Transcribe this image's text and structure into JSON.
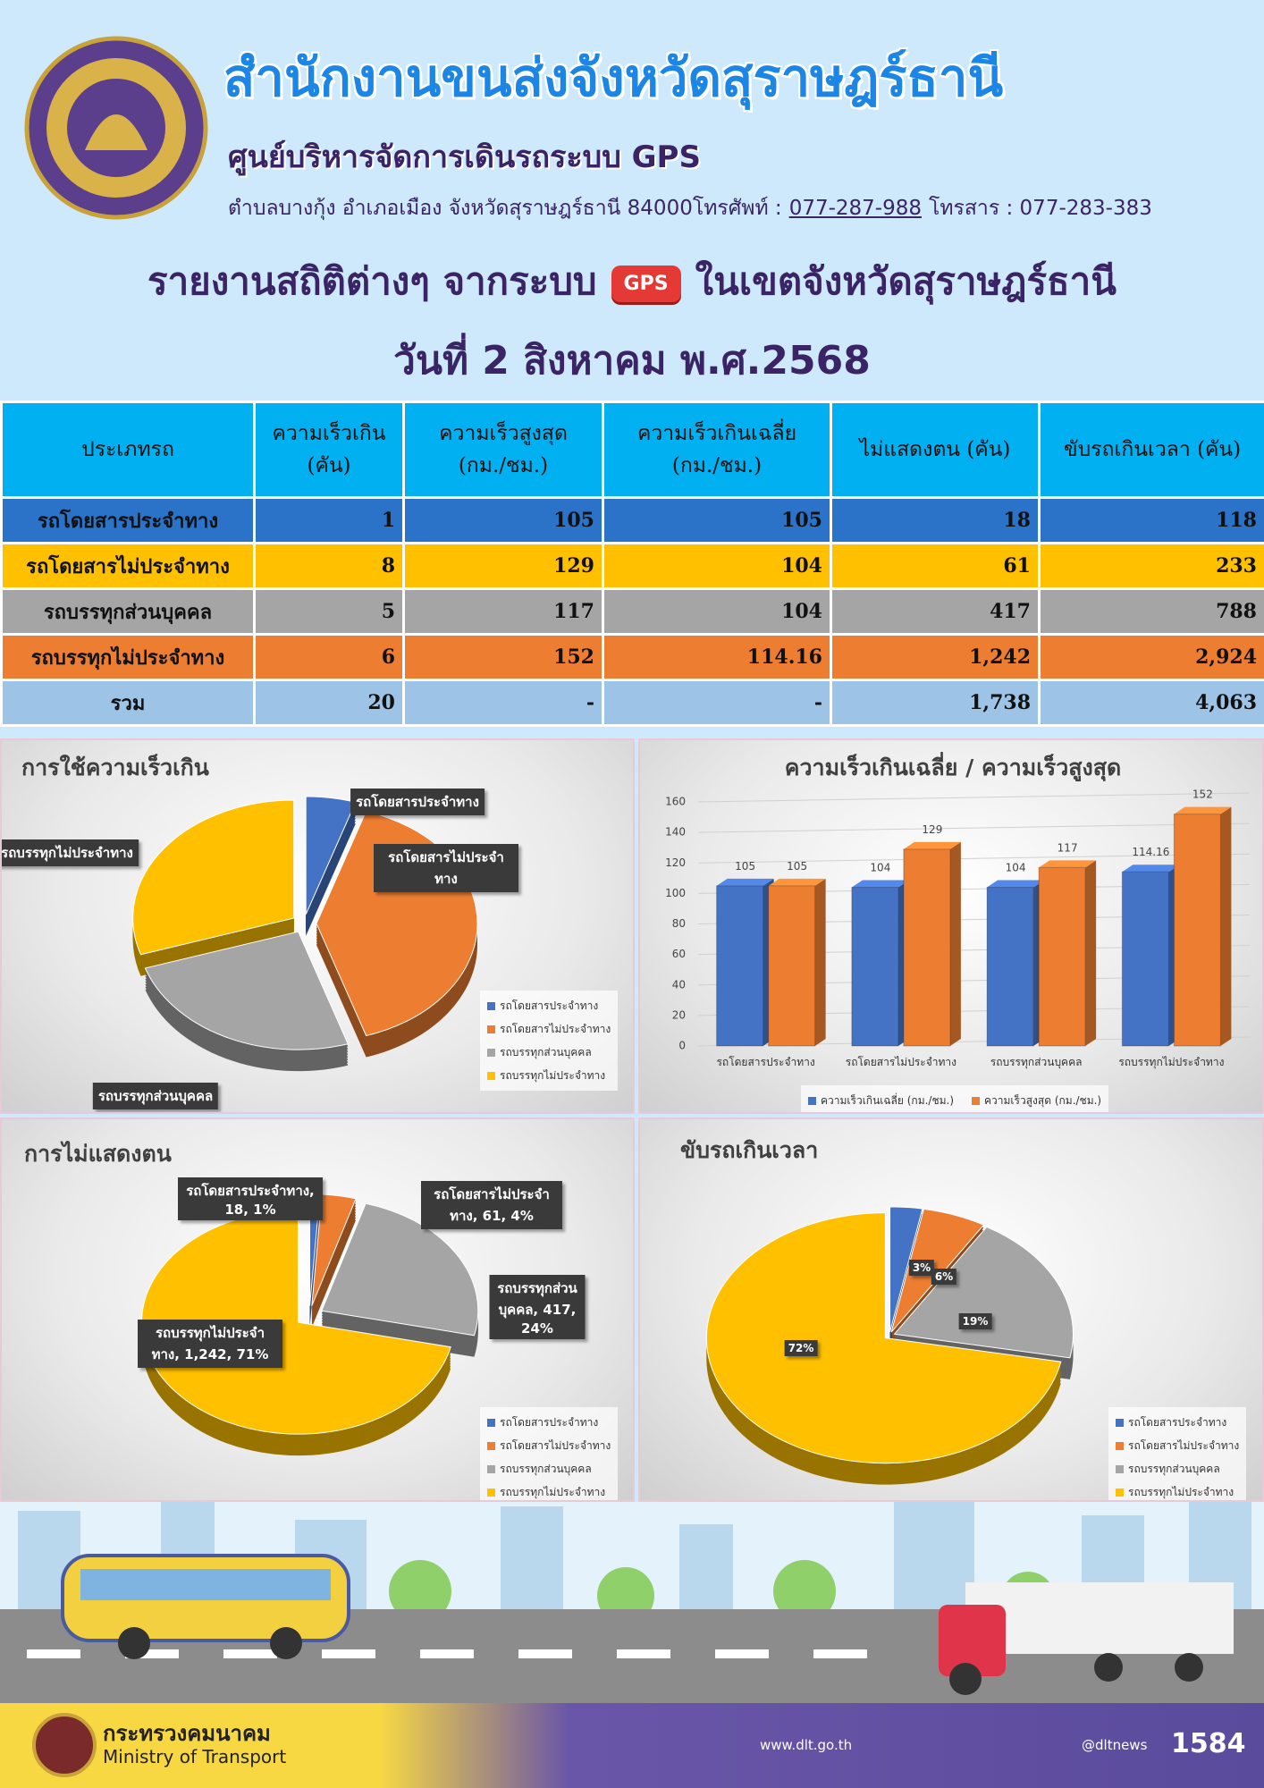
{
  "header": {
    "title": "สำนักงานขนส่งจังหวัดสุราษฎร์ธานี",
    "subtitle": "ศูนย์บริหารจัดการเดินรถระบบ GPS",
    "address": "ตำบลบางกุ้ง อำเภอเมือง จังหวัดสุราษฎร์ธานี 84000โทรศัพท์ :",
    "phone": "077-287-988",
    "fax": "โทรสาร : 077-283-383"
  },
  "report": {
    "title": "รายงานสถิติต่างๆ จากระบบ",
    "icon": "GPS",
    "area": "ในเขตจังหวัดสุราษฎร์ธานี",
    "date": "วันที่ 2 สิงหาคม พ.ศ.2568"
  },
  "table": {
    "header_color": "#00b0f0",
    "columns": [
      "ประเภทรถ",
      "ความเร็วเกิน (คัน)",
      "ความเร็วสูงสุด (กม./ชม.)",
      "ความเร็วเกินเฉลี่ย (กม./ชม.)",
      "ไม่แสดงตน (คัน)",
      "ขับรถเกินเวลา (คัน)"
    ],
    "rows": [
      [
        "รถโดยสารประจำทาง",
        "1",
        "105",
        "105",
        "18",
        "118"
      ],
      [
        "รถโดยสารไม่ประจำทาง",
        "8",
        "129",
        "104",
        "61",
        "233"
      ],
      [
        "รถบรรทุกส่วนบุคคล",
        "5",
        "117",
        "104",
        "417",
        "788"
      ],
      [
        "รถบรรทุกไม่ประจำทาง",
        "6",
        "152",
        "114.16",
        "1,242",
        "2,924"
      ],
      [
        "รวม",
        "20",
        "-",
        "-",
        "1,738",
        "4,063"
      ]
    ],
    "row_colors": [
      "#2a73c8",
      "#ffc000",
      "#a5a5a5",
      "#ed7d31",
      "#9dc3e6"
    ]
  },
  "chart_data": [
    {
      "type": "pie",
      "title": "การใช้ความเร็วเกิน",
      "categories": [
        "รถโดยสารประจำทาง",
        "รถโดยสารไม่ประจำทาง",
        "รถบรรทุกส่วนบุคคล",
        "รถบรรทุกไม่ประจำทาง"
      ],
      "values": [
        1,
        8,
        5,
        6
      ],
      "colors": [
        "#4472c4",
        "#ed7d31",
        "#a5a5a5",
        "#ffc000"
      ],
      "legend": "lower right"
    },
    {
      "type": "bar",
      "title": "ความเร็วเกินเฉลี่ย / ความเร็วสูงสุด",
      "categories": [
        "รถโดยสารประจำทาง",
        "รถโดยสารไม่ประจำทาง",
        "รถบรรทุกส่วนบุคคล",
        "รถบรรทุกไม่ประจำทาง"
      ],
      "series": [
        {
          "name": "ความเร็วเกินเฉลี่ย (กม./ชม.)",
          "color": "#4472c4",
          "values": [
            105,
            104,
            104,
            114.16
          ]
        },
        {
          "name": "ความเร็วสูงสุด (กม./ชม.)",
          "color": "#ed7d31",
          "values": [
            105,
            129,
            117,
            152
          ]
        }
      ],
      "ylim": [
        0,
        160
      ],
      "yticks": [
        0,
        20,
        40,
        60,
        80,
        100,
        120,
        140,
        160
      ],
      "grid": true,
      "legend": "bottom"
    },
    {
      "type": "pie",
      "title": "การไม่แสดงตน",
      "categories": [
        "รถโดยสารประจำทาง",
        "รถโดยสารไม่ประจำทาง",
        "รถบรรทุกส่วนบุคคล",
        "รถบรรทุกไม่ประจำทาง"
      ],
      "values": [
        18,
        61,
        417,
        1242
      ],
      "value_labels": [
        "รถโดยสารประจำทาง, 18, 1%",
        "รถโดยสารไม่ประจำทาง, 61, 4%",
        "รถบรรทุกส่วนบุคคล, 417, 24%",
        "รถบรรทุกไม่ประจำทาง, 1,242, 71%"
      ],
      "colors": [
        "#4472c4",
        "#ed7d31",
        "#a5a5a5",
        "#ffc000"
      ],
      "legend": "lower right"
    },
    {
      "type": "pie",
      "title": "ขับรถเกินเวลา",
      "categories": [
        "รถโดยสารประจำทาง",
        "รถโดยสารไม่ประจำทาง",
        "รถบรรทุกส่วนบุคคล",
        "รถบรรทุกไม่ประจำทาง"
      ],
      "values": [
        118,
        233,
        788,
        2924
      ],
      "value_labels": [
        "3%",
        "6%",
        "19%",
        "72%"
      ],
      "colors": [
        "#4472c4",
        "#ed7d31",
        "#a5a5a5",
        "#ffc000"
      ],
      "legend": "lower right"
    }
  ],
  "footer": {
    "ministry": "กระทรวงคมนาคม",
    "ministry_en": "Ministry of Transport",
    "website": "www.dlt.go.th",
    "social": "@dltnews",
    "call_center": "1584"
  }
}
